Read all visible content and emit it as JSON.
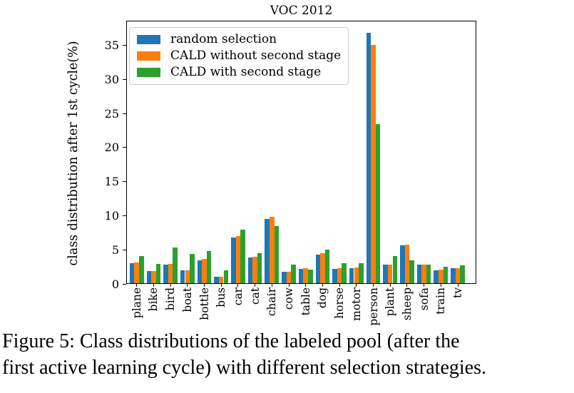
{
  "caption": {
    "line1": "Figure 5: Class distributions of the labeled pool (after the",
    "line2": "first active learning cycle) with different selection strategies."
  },
  "chart_data": {
    "type": "bar",
    "title": "VOC 2012",
    "xlabel": "",
    "ylabel": "class distribution after 1st cycle(%)",
    "categories": [
      "plane",
      "bike",
      "bird",
      "boat",
      "bottle",
      "bus",
      "car",
      "cat",
      "chair",
      "cow",
      "table",
      "dog",
      "horse",
      "motor",
      "person",
      "plant",
      "sheep",
      "sofa",
      "train",
      "tv"
    ],
    "series": [
      {
        "name": "random selection",
        "color": "#1f77b4",
        "values": [
          2.9,
          1.8,
          2.7,
          1.9,
          3.4,
          0.9,
          6.7,
          3.8,
          9.4,
          1.7,
          2.1,
          4.2,
          2.1,
          2.2,
          36.7,
          2.7,
          5.6,
          2.7,
          1.9,
          2.2
        ]
      },
      {
        "name": "CALD without second stage",
        "color": "#ff7f0e",
        "values": [
          3.0,
          1.8,
          2.8,
          1.9,
          3.6,
          0.9,
          6.9,
          3.9,
          9.7,
          1.7,
          2.2,
          4.4,
          2.2,
          2.3,
          34.9,
          2.7,
          5.7,
          2.7,
          2.0,
          2.2
        ]
      },
      {
        "name": "CALD with second stage",
        "color": "#2ca02c",
        "values": [
          4.0,
          2.8,
          5.2,
          4.3,
          4.7,
          1.9,
          7.8,
          4.4,
          8.4,
          2.7,
          2.0,
          4.9,
          2.9,
          2.9,
          23.3,
          4.0,
          3.4,
          2.7,
          2.4,
          2.6
        ]
      }
    ],
    "yticks": [
      0,
      5,
      10,
      15,
      20,
      25,
      30,
      35
    ],
    "ylim": [
      0,
      38.6
    ],
    "grid": false,
    "legend_position": "upper left"
  }
}
